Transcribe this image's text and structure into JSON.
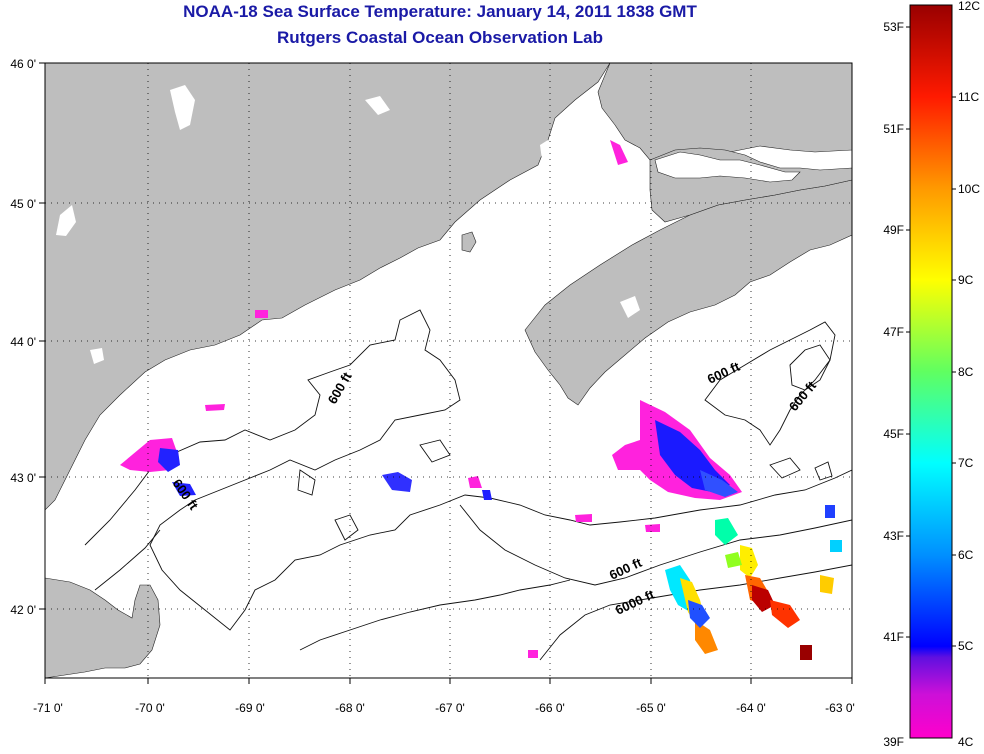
{
  "title": "NOAA-18 Sea Surface Temperature:  January 14, 2011 1838 GMT",
  "subtitle": "Rutgers Coastal Ocean Observation Lab",
  "map": {
    "lon_range": [
      -71,
      -63
    ],
    "lat_range": [
      41.5,
      46
    ],
    "grid": "dotted",
    "x_ticks": [
      "-71 0'",
      "-70 0'",
      "-69 0'",
      "-68 0'",
      "-67 0'",
      "-66 0'",
      "-65 0'",
      "-64 0'",
      "-63 0'"
    ],
    "y_ticks": [
      "46 0'",
      "45 0'",
      "44 0'",
      "43 0'",
      "42 0'"
    ],
    "land_color": "#bebebe",
    "ocean_color": "#ffffff",
    "contour_labels": [
      "600 ft",
      "600 ft",
      "600 ft",
      "600 ft",
      "600 ft",
      "6000 ft"
    ]
  },
  "colorbar": {
    "left_labels": [
      "53F",
      "51F",
      "49F",
      "47F",
      "45F",
      "43F",
      "41F",
      "39F"
    ],
    "right_labels": [
      "12C",
      "11C",
      "10C",
      "9C",
      "8C",
      "7C",
      "6C",
      "5C",
      "4C"
    ],
    "colors": [
      "#ff00cc",
      "#8a1ad6",
      "#0000ff",
      "#0090ff",
      "#00ffff",
      "#00ff80",
      "#80ff00",
      "#ffff00",
      "#ff9900",
      "#ff3300",
      "#ff0000",
      "#990000"
    ]
  }
}
